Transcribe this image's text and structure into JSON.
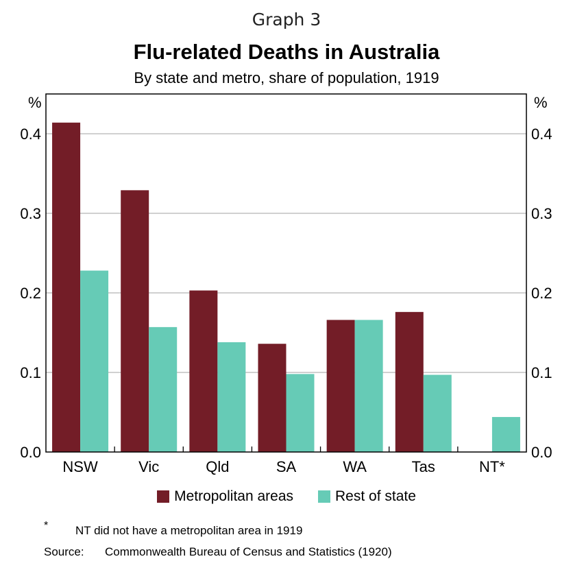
{
  "header": {
    "graph_label": "Graph 3"
  },
  "chart_data": {
    "type": "bar",
    "title": "Flu-related Deaths in Australia",
    "subtitle": "By state and metro, share of population, 1919",
    "ylabel_left": "%",
    "ylabel_right": "%",
    "ylim": [
      0,
      0.45
    ],
    "yticks": [
      "0.0",
      "0.1",
      "0.2",
      "0.3",
      "0.4"
    ],
    "categories": [
      "NSW",
      "Vic",
      "Qld",
      "SA",
      "WA",
      "Tas",
      "NT*"
    ],
    "series": [
      {
        "name": "Metropolitan areas",
        "color": "#731d27",
        "values": [
          0.414,
          0.329,
          0.203,
          0.136,
          0.166,
          0.176,
          null
        ]
      },
      {
        "name": "Rest of state",
        "color": "#66cbb6",
        "values": [
          0.228,
          0.157,
          0.138,
          0.098,
          0.166,
          0.097,
          0.044
        ]
      }
    ],
    "grid": "horizontal",
    "legend_position": "bottom"
  },
  "footer": {
    "note_marker": "*",
    "note_text": "NT did not have a metropolitan area in 1919",
    "source_label": "Source:",
    "source_text": "Commonwealth Bureau of Census and Statistics (1920)"
  }
}
